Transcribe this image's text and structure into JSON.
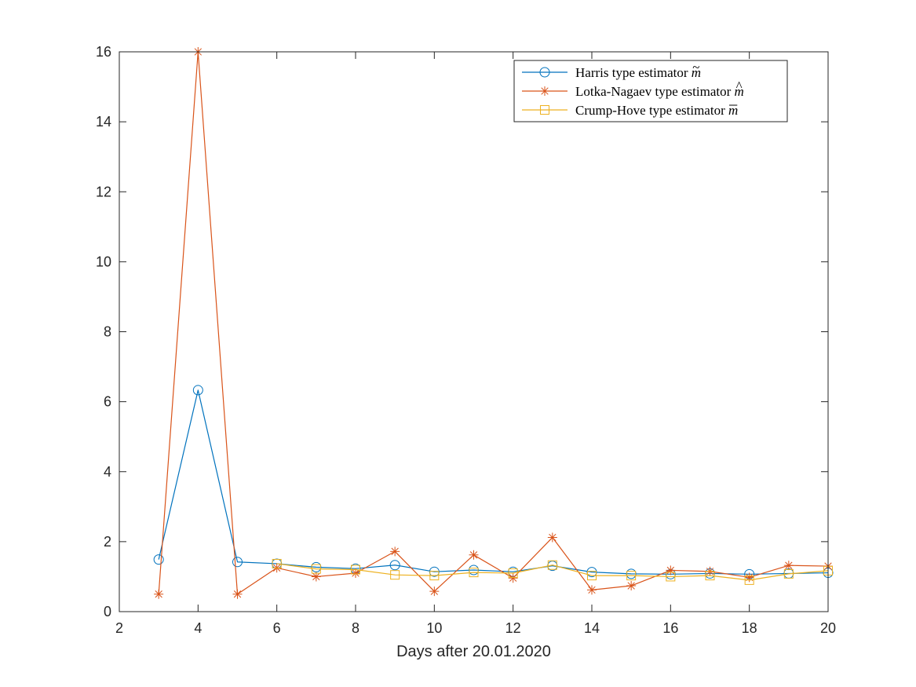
{
  "chart_data": {
    "type": "line",
    "title": "",
    "xlabel": "Days after 20.01.2020",
    "ylabel": "",
    "xlim": [
      2,
      20
    ],
    "ylim": [
      0,
      16
    ],
    "xticks": [
      2,
      4,
      6,
      8,
      10,
      12,
      14,
      16,
      18,
      20
    ],
    "yticks": [
      0,
      2,
      4,
      6,
      8,
      10,
      12,
      14,
      16
    ],
    "grid": false,
    "legend_position": "top-right",
    "series": [
      {
        "name": "Harris type estimator",
        "symbol": "m",
        "accent": "~",
        "color": "#0072BD",
        "marker": "circle",
        "x": [
          3,
          4,
          5,
          6,
          7,
          8,
          9,
          10,
          11,
          12,
          13,
          14,
          15,
          16,
          17,
          18,
          19,
          20
        ],
        "y": [
          1.49,
          6.33,
          1.42,
          1.37,
          1.27,
          1.23,
          1.33,
          1.14,
          1.19,
          1.14,
          1.31,
          1.13,
          1.08,
          1.07,
          1.09,
          1.07,
          1.09,
          1.11
        ]
      },
      {
        "name": "Lotka-Nagaev type estimator",
        "symbol": "m",
        "accent": "^",
        "color": "#D95319",
        "marker": "asterisk",
        "x": [
          3,
          4,
          5,
          6,
          7,
          8,
          9,
          10,
          11,
          12,
          13,
          14,
          15,
          16,
          17,
          18,
          19,
          20
        ],
        "y": [
          0.5,
          16.0,
          0.5,
          1.25,
          1.0,
          1.1,
          1.72,
          0.58,
          1.62,
          0.96,
          2.12,
          0.62,
          0.74,
          1.18,
          1.15,
          0.98,
          1.32,
          1.3
        ]
      },
      {
        "name": "Crump-Hove type estimator",
        "symbol": "m",
        "accent": "-",
        "color": "#EDB120",
        "marker": "square",
        "x": [
          6,
          7,
          8,
          9,
          10,
          11,
          12,
          13,
          14,
          15,
          16,
          17,
          18,
          19,
          20
        ],
        "y": [
          1.37,
          1.22,
          1.2,
          1.05,
          1.03,
          1.12,
          1.1,
          1.33,
          1.03,
          1.03,
          1.0,
          1.03,
          0.9,
          1.08,
          1.17
        ]
      }
    ]
  }
}
